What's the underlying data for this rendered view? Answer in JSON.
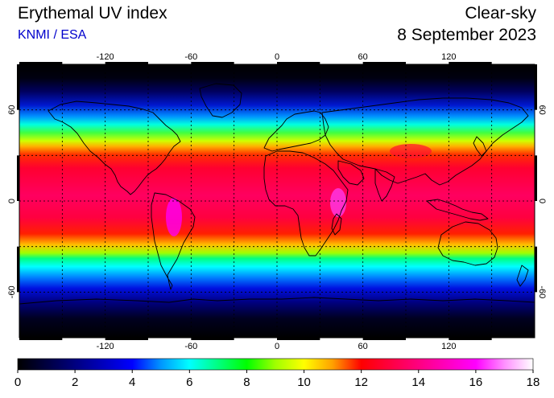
{
  "header": {
    "title": "Erythemal UV index",
    "credit": "KNMI / ESA",
    "mode": "Clear-sky",
    "date": "8 September 2023"
  },
  "map": {
    "projection": "equirectangular",
    "lon_range": [
      -180,
      180
    ],
    "lat_range": [
      -90,
      90
    ],
    "lon_ticks": [
      -120,
      -60,
      0,
      60,
      120
    ],
    "lat_ticks": [
      60,
      0,
      -60
    ],
    "grid_lon_step": 30,
    "grid_lat_step": 30,
    "grid": "dotted black",
    "coastlines": "black outline"
  },
  "colorbar": {
    "min": 0,
    "max": 18,
    "ticks": [
      "0",
      "2",
      "4",
      "6",
      "8",
      "10",
      "12",
      "14",
      "16",
      "18"
    ],
    "colors": [
      {
        "value": 0,
        "color": "#000000"
      },
      {
        "value": 2,
        "color": "#00007f"
      },
      {
        "value": 4,
        "color": "#0000ff"
      },
      {
        "value": 5,
        "color": "#0096ff"
      },
      {
        "value": 6,
        "color": "#00ffff"
      },
      {
        "value": 7,
        "color": "#00ff80"
      },
      {
        "value": 8,
        "color": "#00ff00"
      },
      {
        "value": 9,
        "color": "#a0ff00"
      },
      {
        "value": 10,
        "color": "#ffff00"
      },
      {
        "value": 11,
        "color": "#ffa000"
      },
      {
        "value": 12,
        "color": "#ff0000"
      },
      {
        "value": 14,
        "color": "#ff0080"
      },
      {
        "value": 16,
        "color": "#ff00ff"
      },
      {
        "value": 17,
        "color": "#ff90ff"
      },
      {
        "value": 18,
        "color": "#ffffff"
      }
    ]
  },
  "colors": {
    "credit": "#0000cc"
  }
}
